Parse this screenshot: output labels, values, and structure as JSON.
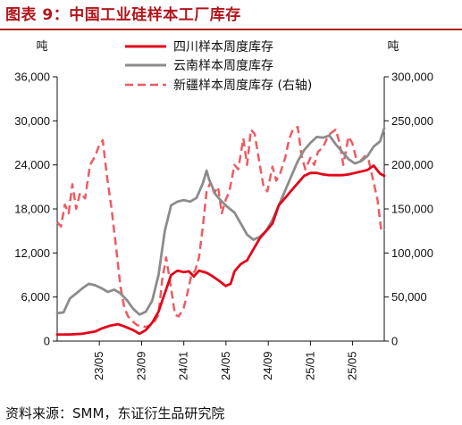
{
  "title": "图表 9：中国工业硅样本工厂库存",
  "source": "资料来源：SMM，东证衍生品研究院",
  "chart_data": {
    "type": "line",
    "left_unit": "吨",
    "right_unit": "吨",
    "y_left": {
      "ylim": [
        0,
        36000
      ],
      "ticks": [
        "0",
        "6,000",
        "12,000",
        "18,000",
        "24,000",
        "30,000",
        "36,000"
      ],
      "tick_values": [
        0,
        6000,
        12000,
        18000,
        24000,
        30000,
        36000
      ]
    },
    "y_right": {
      "ylim": [
        0,
        300000
      ],
      "ticks": [
        "0",
        "50,000",
        "100,000",
        "150,000",
        "200,000",
        "250,000",
        "300,000"
      ],
      "tick_values": [
        0,
        50000,
        100000,
        150000,
        200000,
        250000,
        300000
      ]
    },
    "x_range": [
      2023.0,
      2025.583
    ],
    "x_ticks": [
      {
        "label": "23/05",
        "x": 2023.333
      },
      {
        "label": "23/09",
        "x": 2023.667
      },
      {
        "label": "24/01",
        "x": 2024.0
      },
      {
        "label": "24/05",
        "x": 2024.333
      },
      {
        "label": "24/09",
        "x": 2024.667
      },
      {
        "label": "25/01",
        "x": 2025.0
      },
      {
        "label": "25/05",
        "x": 2025.333
      }
    ],
    "legend_position": "top-center",
    "series": [
      {
        "name": "四川样本周度库存",
        "axis": "left",
        "color": "#e3061a",
        "style": "solid",
        "points": [
          [
            2023.0,
            900
          ],
          [
            2023.1,
            900
          ],
          [
            2023.2,
            1000
          ],
          [
            2023.3,
            1300
          ],
          [
            2023.35,
            1700
          ],
          [
            2023.42,
            2100
          ],
          [
            2023.48,
            2300
          ],
          [
            2023.53,
            2000
          ],
          [
            2023.6,
            1500
          ],
          [
            2023.65,
            1000
          ],
          [
            2023.7,
            1500
          ],
          [
            2023.75,
            2500
          ],
          [
            2023.8,
            4000
          ],
          [
            2023.85,
            6500
          ],
          [
            2023.9,
            9000
          ],
          [
            2023.95,
            9600
          ],
          [
            2024.0,
            9400
          ],
          [
            2024.04,
            9500
          ],
          [
            2024.08,
            8800
          ],
          [
            2024.12,
            9600
          ],
          [
            2024.18,
            9300
          ],
          [
            2024.22,
            8900
          ],
          [
            2024.28,
            8200
          ],
          [
            2024.33,
            7500
          ],
          [
            2024.37,
            7800
          ],
          [
            2024.4,
            9500
          ],
          [
            2024.45,
            10500
          ],
          [
            2024.5,
            11000
          ],
          [
            2024.55,
            12500
          ],
          [
            2024.6,
            14000
          ],
          [
            2024.65,
            15000
          ],
          [
            2024.7,
            16000
          ],
          [
            2024.75,
            18500
          ],
          [
            2024.8,
            19500
          ],
          [
            2024.85,
            20500
          ],
          [
            2024.9,
            21500
          ],
          [
            2024.95,
            22500
          ],
          [
            2025.0,
            22900
          ],
          [
            2025.05,
            22900
          ],
          [
            2025.1,
            22700
          ],
          [
            2025.15,
            22600
          ],
          [
            2025.25,
            22600
          ],
          [
            2025.3,
            22700
          ],
          [
            2025.35,
            22900
          ],
          [
            2025.4,
            23100
          ],
          [
            2025.45,
            23300
          ],
          [
            2025.5,
            23900
          ],
          [
            2025.55,
            22800
          ],
          [
            2025.583,
            22500
          ]
        ]
      },
      {
        "name": "云南样本周度库存",
        "axis": "left",
        "color": "#8c8c8c",
        "style": "solid",
        "points": [
          [
            2023.0,
            3800
          ],
          [
            2023.05,
            3900
          ],
          [
            2023.1,
            5800
          ],
          [
            2023.15,
            6500
          ],
          [
            2023.2,
            7200
          ],
          [
            2023.25,
            7800
          ],
          [
            2023.3,
            7600
          ],
          [
            2023.35,
            7200
          ],
          [
            2023.4,
            6700
          ],
          [
            2023.45,
            7000
          ],
          [
            2023.5,
            6500
          ],
          [
            2023.55,
            5600
          ],
          [
            2023.6,
            4400
          ],
          [
            2023.65,
            3600
          ],
          [
            2023.7,
            4000
          ],
          [
            2023.75,
            5500
          ],
          [
            2023.8,
            9000
          ],
          [
            2023.85,
            15000
          ],
          [
            2023.9,
            18500
          ],
          [
            2023.95,
            19000
          ],
          [
            2024.0,
            19200
          ],
          [
            2024.05,
            19000
          ],
          [
            2024.1,
            19500
          ],
          [
            2024.15,
            21500
          ],
          [
            2024.18,
            23200
          ],
          [
            2024.2,
            22000
          ],
          [
            2024.25,
            20000
          ],
          [
            2024.3,
            19000
          ],
          [
            2024.35,
            18200
          ],
          [
            2024.4,
            17500
          ],
          [
            2024.45,
            16000
          ],
          [
            2024.5,
            14500
          ],
          [
            2024.55,
            13800
          ],
          [
            2024.6,
            14200
          ],
          [
            2024.65,
            15000
          ],
          [
            2024.7,
            16500
          ],
          [
            2024.75,
            18500
          ],
          [
            2024.8,
            20500
          ],
          [
            2024.85,
            22500
          ],
          [
            2024.9,
            24500
          ],
          [
            2024.95,
            26000
          ],
          [
            2025.0,
            27000
          ],
          [
            2025.05,
            27800
          ],
          [
            2025.1,
            27700
          ],
          [
            2025.15,
            28000
          ],
          [
            2025.2,
            26800
          ],
          [
            2025.25,
            25800
          ],
          [
            2025.3,
            24800
          ],
          [
            2025.35,
            24200
          ],
          [
            2025.4,
            24500
          ],
          [
            2025.45,
            25200
          ],
          [
            2025.5,
            26500
          ],
          [
            2025.55,
            27200
          ],
          [
            2025.583,
            29000
          ]
        ]
      },
      {
        "name": "新疆样本周度库存 (右轴)",
        "axis": "right",
        "color": "#ee5b63",
        "style": "dashed",
        "points": [
          [
            2023.0,
            135000
          ],
          [
            2023.03,
            130000
          ],
          [
            2023.06,
            155000
          ],
          [
            2023.09,
            145000
          ],
          [
            2023.12,
            178000
          ],
          [
            2023.15,
            150000
          ],
          [
            2023.18,
            168000
          ],
          [
            2023.22,
            162000
          ],
          [
            2023.26,
            200000
          ],
          [
            2023.3,
            210000
          ],
          [
            2023.33,
            222000
          ],
          [
            2023.36,
            228000
          ],
          [
            2023.39,
            190000
          ],
          [
            2023.43,
            150000
          ],
          [
            2023.47,
            100000
          ],
          [
            2023.5,
            62000
          ],
          [
            2023.53,
            38000
          ],
          [
            2023.56,
            28000
          ],
          [
            2023.6,
            22000
          ],
          [
            2023.63,
            18000
          ],
          [
            2023.67,
            17000
          ],
          [
            2023.7,
            16000
          ],
          [
            2023.73,
            17500
          ],
          [
            2023.76,
            20000
          ],
          [
            2023.8,
            30000
          ],
          [
            2023.83,
            70000
          ],
          [
            2023.86,
            95000
          ],
          [
            2023.9,
            60000
          ],
          [
            2023.93,
            30000
          ],
          [
            2023.96,
            28000
          ],
          [
            2024.0,
            38000
          ],
          [
            2024.03,
            55000
          ],
          [
            2024.06,
            75000
          ],
          [
            2024.09,
            80000
          ],
          [
            2024.12,
            95000
          ],
          [
            2024.15,
            130000
          ],
          [
            2024.18,
            170000
          ],
          [
            2024.21,
            180000
          ],
          [
            2024.24,
            168000
          ],
          [
            2024.27,
            175000
          ],
          [
            2024.3,
            145000
          ],
          [
            2024.33,
            160000
          ],
          [
            2024.36,
            170000
          ],
          [
            2024.4,
            200000
          ],
          [
            2024.43,
            195000
          ],
          [
            2024.47,
            230000
          ],
          [
            2024.5,
            200000
          ],
          [
            2024.53,
            240000
          ],
          [
            2024.56,
            235000
          ],
          [
            2024.6,
            200000
          ],
          [
            2024.63,
            175000
          ],
          [
            2024.66,
            170000
          ],
          [
            2024.7,
            198000
          ],
          [
            2024.73,
            182000
          ],
          [
            2024.76,
            190000
          ],
          [
            2024.8,
            208000
          ],
          [
            2024.83,
            228000
          ],
          [
            2024.86,
            240000
          ],
          [
            2024.9,
            243000
          ],
          [
            2024.93,
            210000
          ],
          [
            2024.96,
            195000
          ],
          [
            2025.0,
            208000
          ],
          [
            2025.03,
            200000
          ],
          [
            2025.06,
            215000
          ],
          [
            2025.1,
            220000
          ],
          [
            2025.13,
            230000
          ],
          [
            2025.16,
            236000
          ],
          [
            2025.2,
            240000
          ],
          [
            2025.23,
            225000
          ],
          [
            2025.26,
            200000
          ],
          [
            2025.3,
            232000
          ],
          [
            2025.33,
            225000
          ],
          [
            2025.36,
            208000
          ],
          [
            2025.4,
            205000
          ],
          [
            2025.43,
            210000
          ],
          [
            2025.46,
            205000
          ],
          [
            2025.5,
            180000
          ],
          [
            2025.53,
            160000
          ],
          [
            2025.56,
            125000
          ],
          [
            2025.583,
            127000
          ]
        ]
      }
    ]
  }
}
